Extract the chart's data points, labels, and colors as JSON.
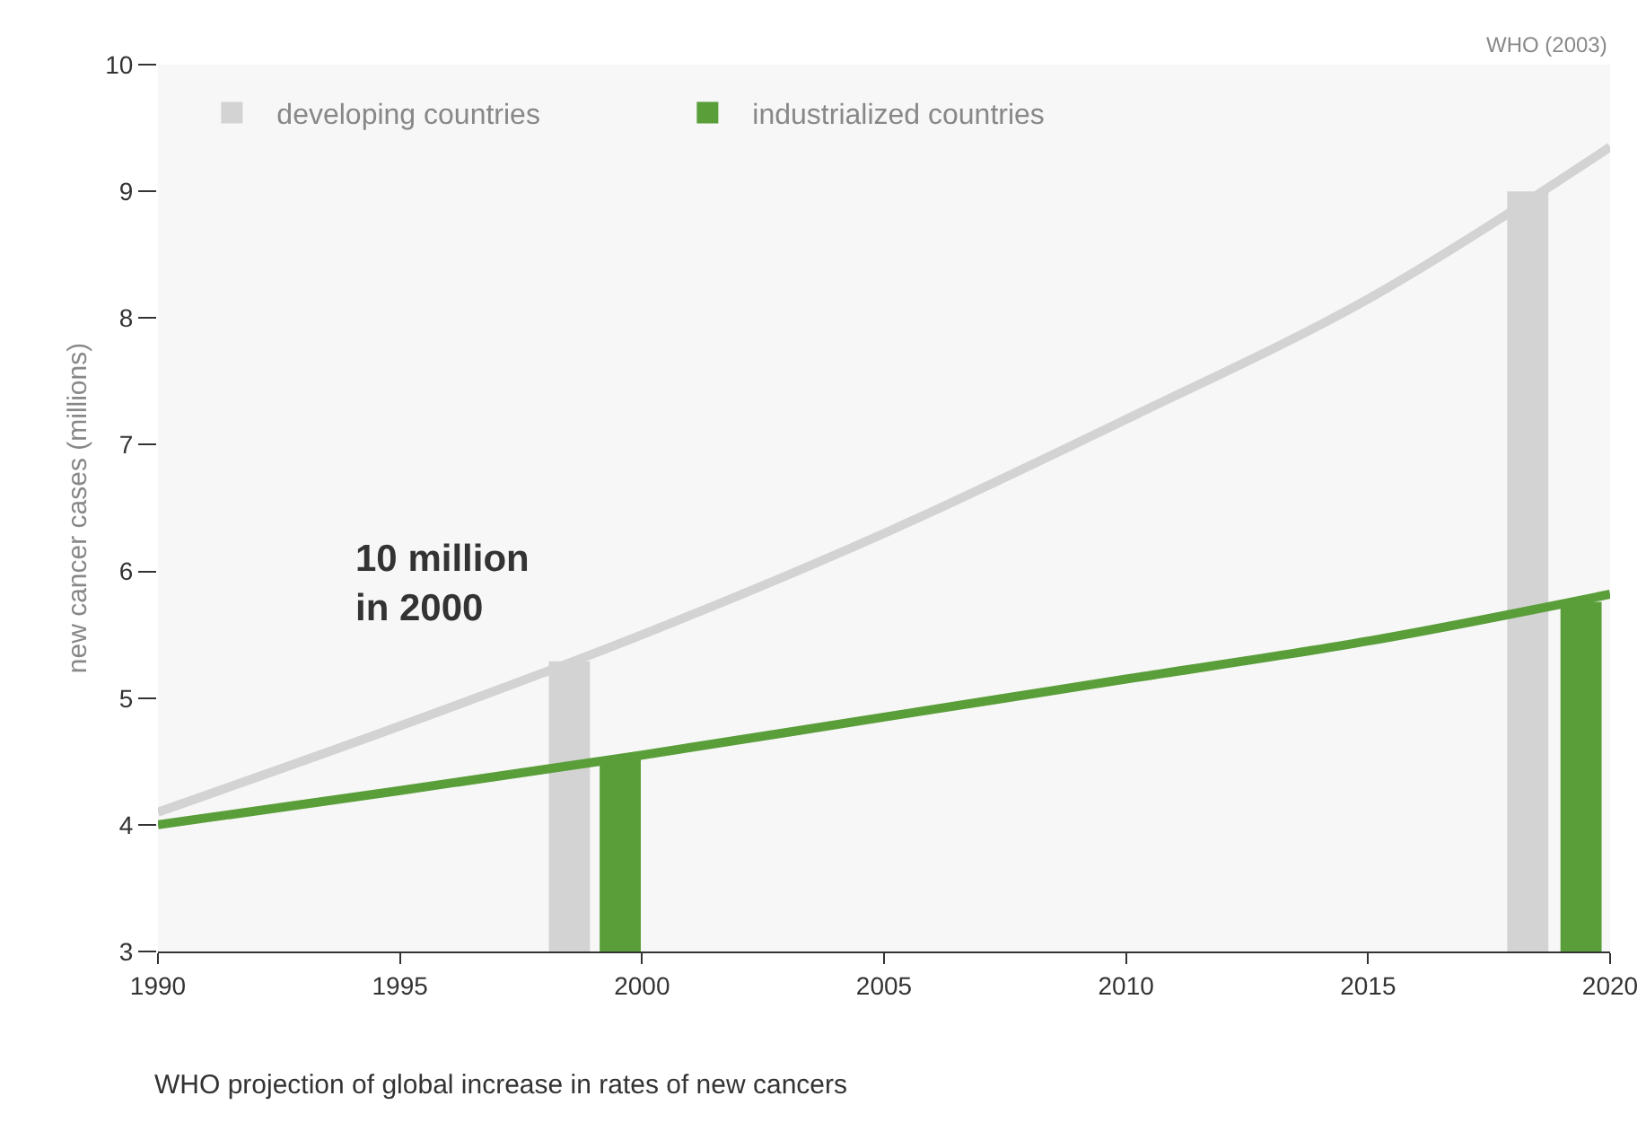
{
  "chart_data": {
    "type": "bar",
    "ylabel": "new cancer cases (millions)",
    "annotations": [
      "WHO (2003)",
      "10 million in 2000",
      "WHO projection of global increase in rates of new cancers"
    ],
    "xlim": [
      1990,
      2020
    ],
    "xticks": [
      1990,
      1995,
      2000,
      2005,
      2010,
      2015,
      2020
    ],
    "ylim": [
      3,
      10
    ],
    "yticks": [
      3,
      4,
      5,
      6,
      7,
      8,
      9,
      10
    ],
    "grid": false,
    "legend": "top left",
    "series": [
      {
        "name": "developing countries",
        "color": "#d3d3d3",
        "x": [
          1998.5,
          2018.3
        ],
        "values": [
          5.29,
          9.0
        ]
      },
      {
        "name": "industrialized countries",
        "color": "#5a9e3a",
        "x": [
          1999.55,
          2019.4
        ],
        "values": [
          4.53,
          5.76
        ]
      },
      {
        "type": "line",
        "color": "#d3d3d3",
        "x": [
          1990,
          1995,
          2000,
          2005,
          2010,
          2015,
          2020
        ],
        "values": [
          4.1,
          4.78,
          5.5,
          6.3,
          7.2,
          8.15,
          9.35
        ]
      },
      {
        "type": "line",
        "color": "#5a9e3a",
        "x": [
          1990,
          1995,
          2000,
          2005,
          2010,
          2015,
          2020
        ],
        "values": [
          4.0,
          4.27,
          4.55,
          4.85,
          5.15,
          5.45,
          5.82
        ]
      }
    ]
  }
}
